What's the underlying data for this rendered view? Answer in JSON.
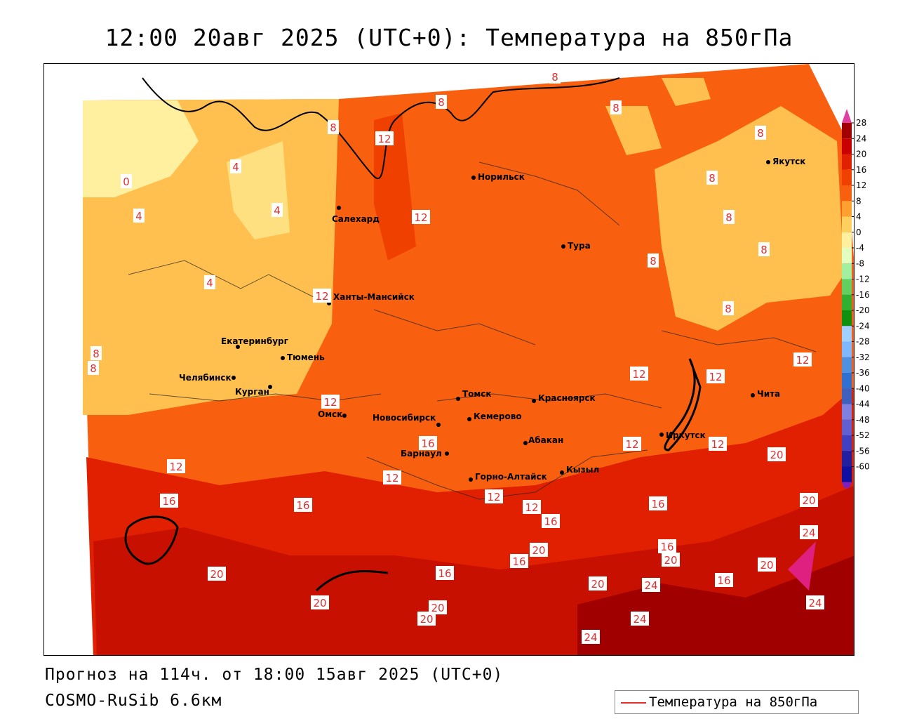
{
  "title": "12:00 20авг 2025 (UTC+0): Температура на 850гПа",
  "footer": {
    "forecast": "Прогноз на 114ч. от 18:00 15авг 2025 (UTC+0)",
    "model": "COSMO-RuSib 6.6км"
  },
  "legend": {
    "label": "Температура на 850гПа",
    "line_color": "#e03030"
  },
  "cities": [
    {
      "name": "Норильск"
    },
    {
      "name": "Якутск"
    },
    {
      "name": "Салехард"
    },
    {
      "name": "Тура"
    },
    {
      "name": "Ханты-Мансийск"
    },
    {
      "name": "Екатеринбург"
    },
    {
      "name": "Тюмень"
    },
    {
      "name": "Челябинск"
    },
    {
      "name": "Курган"
    },
    {
      "name": "Омск"
    },
    {
      "name": "Томск"
    },
    {
      "name": "Красноярск"
    },
    {
      "name": "Новосибирск"
    },
    {
      "name": "Кемерово"
    },
    {
      "name": "Абакан"
    },
    {
      "name": "Иркутск"
    },
    {
      "name": "Чита"
    },
    {
      "name": "Барнаул"
    },
    {
      "name": "Горно-Алтайск"
    },
    {
      "name": "Кызыл"
    }
  ],
  "isotherm_labels": [
    "0",
    "4",
    "4",
    "4",
    "4",
    "8",
    "8",
    "8",
    "8",
    "8",
    "8",
    "8",
    "8",
    "8",
    "8",
    "8",
    "8",
    "12",
    "12",
    "12",
    "12",
    "12",
    "12",
    "12",
    "12",
    "12",
    "12",
    "12",
    "12",
    "12",
    "16",
    "16",
    "16",
    "16",
    "16",
    "16",
    "16",
    "16",
    "16",
    "20",
    "20",
    "20",
    "20",
    "20",
    "20",
    "20",
    "20",
    "20",
    "20",
    "24",
    "24",
    "24",
    "24",
    "24"
  ],
  "color_scale": {
    "ticks": [
      "28",
      "24",
      "20",
      "16",
      "12",
      "8",
      "4",
      "0",
      "-4",
      "-8",
      "-12",
      "-16",
      "-20",
      "-24",
      "-28",
      "-32",
      "-36",
      "-40",
      "-44",
      "-48",
      "-52",
      "-56",
      "-60"
    ],
    "colors": [
      "#a00000",
      "#c80000",
      "#e02000",
      "#f04000",
      "#f86010",
      "#ffa030",
      "#ffd060",
      "#fff0a0",
      "#e0ffc0",
      "#a0f0a0",
      "#60d060",
      "#30b030",
      "#109010",
      "#a0d0ff",
      "#80b8ff",
      "#5090e0",
      "#3070d0",
      "#4060c0",
      "#8080e0",
      "#6060d0",
      "#4040c0",
      "#2020a0",
      "#1010a0"
    ],
    "top_arrow_color": "#e040a0",
    "bottom_arrow_color": "#8020c0"
  }
}
